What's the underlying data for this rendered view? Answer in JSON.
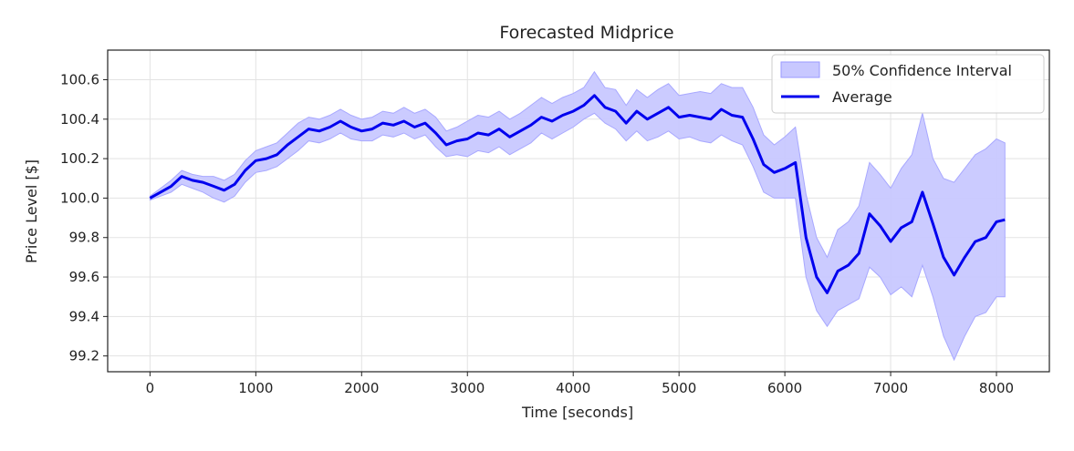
{
  "chart_data": {
    "type": "line",
    "title": "Forecasted Midprice",
    "xlabel": "Time [seconds]",
    "ylabel": "Price Level [$]",
    "xlim": [
      -400,
      8500
    ],
    "ylim": [
      99.12,
      100.75
    ],
    "x_ticks": [
      0,
      1000,
      2000,
      3000,
      4000,
      5000,
      6000,
      7000,
      8000
    ],
    "y_ticks": [
      99.2,
      99.4,
      99.6,
      99.8,
      100.0,
      100.2,
      100.4,
      100.6
    ],
    "x_tick_labels": [
      "0",
      "1000",
      "2000",
      "3000",
      "4000",
      "5000",
      "6000",
      "7000",
      "8000"
    ],
    "y_tick_labels": [
      "99.2",
      "99.4",
      "99.6",
      "99.8",
      "100.0",
      "100.2",
      "100.4",
      "100.6"
    ],
    "grid": true,
    "legend_position": "top-right",
    "x": [
      0,
      100,
      200,
      300,
      400,
      500,
      600,
      700,
      800,
      900,
      1000,
      1100,
      1200,
      1300,
      1400,
      1500,
      1600,
      1700,
      1800,
      1900,
      2000,
      2100,
      2200,
      2300,
      2400,
      2500,
      2600,
      2700,
      2800,
      2900,
      3000,
      3100,
      3200,
      3300,
      3400,
      3500,
      3600,
      3700,
      3800,
      3900,
      4000,
      4100,
      4200,
      4300,
      4400,
      4500,
      4600,
      4700,
      4800,
      4900,
      5000,
      5100,
      5200,
      5300,
      5400,
      5500,
      5600,
      5700,
      5800,
      5900,
      6000,
      6100,
      6200,
      6300,
      6400,
      6500,
      6600,
      6700,
      6800,
      6900,
      7000,
      7100,
      7200,
      7300,
      7400,
      7500,
      7600,
      7700,
      7800,
      7900,
      8000,
      8080
    ],
    "series": [
      {
        "name": "Average",
        "kind": "line",
        "color": "#0000ee",
        "values": [
          100.0,
          100.03,
          100.06,
          100.11,
          100.09,
          100.08,
          100.06,
          100.04,
          100.07,
          100.14,
          100.19,
          100.2,
          100.22,
          100.27,
          100.31,
          100.35,
          100.34,
          100.36,
          100.39,
          100.36,
          100.34,
          100.35,
          100.38,
          100.37,
          100.39,
          100.36,
          100.38,
          100.33,
          100.27,
          100.29,
          100.3,
          100.33,
          100.32,
          100.35,
          100.31,
          100.34,
          100.37,
          100.41,
          100.39,
          100.42,
          100.44,
          100.47,
          100.52,
          100.46,
          100.44,
          100.38,
          100.44,
          100.4,
          100.43,
          100.46,
          100.41,
          100.42,
          100.41,
          100.4,
          100.45,
          100.42,
          100.41,
          100.3,
          100.17,
          100.13,
          100.15,
          100.18,
          99.8,
          99.6,
          99.52,
          99.63,
          99.66,
          99.72,
          99.92,
          99.86,
          99.78,
          99.85,
          99.88,
          100.03,
          99.87,
          99.7,
          99.61,
          99.7,
          99.78,
          99.8,
          99.88,
          99.89
        ]
      },
      {
        "name": "50% Confidence Interval",
        "kind": "band",
        "color": "#c8c8ff",
        "lower": [
          99.99,
          100.01,
          100.03,
          100.07,
          100.05,
          100.03,
          100.0,
          99.98,
          100.01,
          100.08,
          100.13,
          100.14,
          100.16,
          100.2,
          100.24,
          100.29,
          100.28,
          100.3,
          100.33,
          100.3,
          100.29,
          100.29,
          100.32,
          100.31,
          100.33,
          100.3,
          100.32,
          100.26,
          100.21,
          100.22,
          100.21,
          100.24,
          100.23,
          100.26,
          100.22,
          100.25,
          100.28,
          100.33,
          100.3,
          100.33,
          100.36,
          100.4,
          100.43,
          100.38,
          100.35,
          100.29,
          100.34,
          100.29,
          100.31,
          100.34,
          100.3,
          100.31,
          100.29,
          100.28,
          100.32,
          100.29,
          100.27,
          100.16,
          100.03,
          100.0,
          100.0,
          100.0,
          99.6,
          99.43,
          99.35,
          99.43,
          99.46,
          99.49,
          99.65,
          99.6,
          99.51,
          99.55,
          99.5,
          99.66,
          99.5,
          99.3,
          99.18,
          99.3,
          99.4,
          99.42,
          99.5,
          99.5
        ],
        "upper": [
          100.01,
          100.05,
          100.09,
          100.14,
          100.12,
          100.11,
          100.11,
          100.09,
          100.12,
          100.19,
          100.24,
          100.26,
          100.28,
          100.33,
          100.38,
          100.41,
          100.4,
          100.42,
          100.45,
          100.42,
          100.4,
          100.41,
          100.44,
          100.43,
          100.46,
          100.43,
          100.45,
          100.41,
          100.34,
          100.36,
          100.39,
          100.42,
          100.41,
          100.44,
          100.4,
          100.43,
          100.47,
          100.51,
          100.48,
          100.51,
          100.53,
          100.56,
          100.64,
          100.56,
          100.55,
          100.47,
          100.55,
          100.51,
          100.55,
          100.58,
          100.52,
          100.53,
          100.54,
          100.53,
          100.58,
          100.56,
          100.56,
          100.46,
          100.32,
          100.27,
          100.31,
          100.36,
          100.02,
          99.8,
          99.7,
          99.84,
          99.88,
          99.96,
          100.18,
          100.12,
          100.05,
          100.15,
          100.22,
          100.43,
          100.2,
          100.1,
          100.08,
          100.15,
          100.22,
          100.25,
          100.3,
          100.28
        ]
      }
    ]
  }
}
